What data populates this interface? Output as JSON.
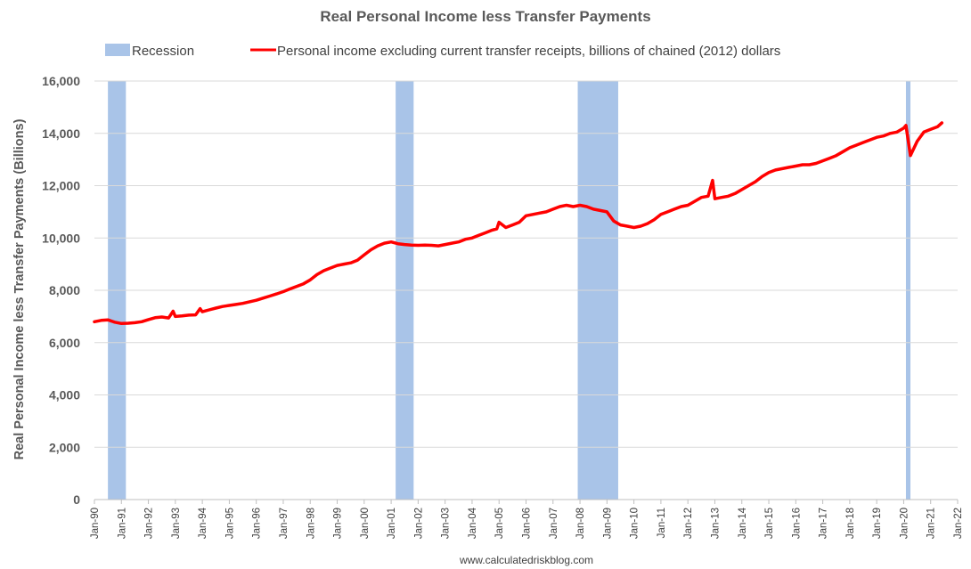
{
  "chart_data": {
    "type": "line",
    "title": "Real Personal Income less Transfer Payments",
    "ylabel": "Real Personal Income less Transfer Payments (Billions)",
    "xlabel": "",
    "footer": "www.calculatedriskblog.com",
    "xlim": [
      "1990-01",
      "2022-01"
    ],
    "ylim": [
      0,
      16000
    ],
    "yticks": [
      0,
      2000,
      4000,
      6000,
      8000,
      10000,
      12000,
      14000,
      16000
    ],
    "ytick_labels": [
      "0",
      "2,000",
      "4,000",
      "6,000",
      "8,000",
      "10,000",
      "12,000",
      "14,000",
      "16,000"
    ],
    "xticks": [
      "1990-01",
      "1991-01",
      "1992-01",
      "1993-01",
      "1994-01",
      "1995-01",
      "1996-01",
      "1997-01",
      "1998-01",
      "1999-01",
      "2000-01",
      "2001-01",
      "2002-01",
      "2003-01",
      "2004-01",
      "2005-01",
      "2006-01",
      "2007-01",
      "2008-01",
      "2009-01",
      "2010-01",
      "2011-01",
      "2012-01",
      "2013-01",
      "2014-01",
      "2015-01",
      "2016-01",
      "2017-01",
      "2018-01",
      "2019-01",
      "2020-01",
      "2021-01",
      "2022-01"
    ],
    "xtick_labels": [
      "Jan-90",
      "Jan-91",
      "Jan-92",
      "Jan-93",
      "Jan-94",
      "Jan-95",
      "Jan-96",
      "Jan-97",
      "Jan-98",
      "Jan-99",
      "Jan-00",
      "Jan-01",
      "Jan-02",
      "Jan-03",
      "Jan-04",
      "Jan-05",
      "Jan-06",
      "Jan-07",
      "Jan-08",
      "Jan-09",
      "Jan-10",
      "Jan-11",
      "Jan-12",
      "Jan-13",
      "Jan-14",
      "Jan-15",
      "Jan-16",
      "Jan-17",
      "Jan-18",
      "Jan-19",
      "Jan-20",
      "Jan-21",
      "Jan-22"
    ],
    "grid": "horizontal",
    "legend_position": "top",
    "recessions": {
      "name": "Recession",
      "color": "#a9c4e8",
      "periods": [
        {
          "start": "1990-07",
          "end": "1991-03"
        },
        {
          "start": "2001-03",
          "end": "2001-11"
        },
        {
          "start": "2007-12",
          "end": "2009-06"
        },
        {
          "start": "2020-02",
          "end": "2020-04"
        }
      ]
    },
    "series": [
      {
        "name": "Personal income excluding current transfer receipts, billions of chained (2012) dollars",
        "color": "#ff0000",
        "x": [
          "1990-01",
          "1990-04",
          "1990-07",
          "1990-10",
          "1991-01",
          "1991-04",
          "1991-07",
          "1991-10",
          "1992-01",
          "1992-04",
          "1992-07",
          "1992-10",
          "1992-12",
          "1993-01",
          "1993-04",
          "1993-07",
          "1993-10",
          "1993-12",
          "1994-01",
          "1994-04",
          "1994-07",
          "1994-10",
          "1995-01",
          "1995-04",
          "1995-07",
          "1995-10",
          "1996-01",
          "1996-04",
          "1996-07",
          "1996-10",
          "1997-01",
          "1997-04",
          "1997-07",
          "1997-10",
          "1998-01",
          "1998-04",
          "1998-07",
          "1998-10",
          "1999-01",
          "1999-04",
          "1999-07",
          "1999-10",
          "2000-01",
          "2000-04",
          "2000-07",
          "2000-10",
          "2001-01",
          "2001-04",
          "2001-07",
          "2001-10",
          "2002-01",
          "2002-04",
          "2002-07",
          "2002-10",
          "2003-01",
          "2003-04",
          "2003-07",
          "2003-10",
          "2004-01",
          "2004-04",
          "2004-07",
          "2004-10",
          "2004-12",
          "2005-01",
          "2005-04",
          "2005-07",
          "2005-10",
          "2006-01",
          "2006-04",
          "2006-07",
          "2006-10",
          "2007-01",
          "2007-04",
          "2007-07",
          "2007-10",
          "2008-01",
          "2008-04",
          "2008-07",
          "2008-10",
          "2009-01",
          "2009-04",
          "2009-07",
          "2009-10",
          "2010-01",
          "2010-04",
          "2010-07",
          "2010-10",
          "2011-01",
          "2011-04",
          "2011-07",
          "2011-10",
          "2012-01",
          "2012-04",
          "2012-07",
          "2012-10",
          "2012-12",
          "2013-01",
          "2013-04",
          "2013-07",
          "2013-10",
          "2014-01",
          "2014-04",
          "2014-07",
          "2014-10",
          "2015-01",
          "2015-04",
          "2015-07",
          "2015-10",
          "2016-01",
          "2016-04",
          "2016-07",
          "2016-10",
          "2017-01",
          "2017-04",
          "2017-07",
          "2017-10",
          "2018-01",
          "2018-04",
          "2018-07",
          "2018-10",
          "2019-01",
          "2019-04",
          "2019-07",
          "2019-10",
          "2020-01",
          "2020-02",
          "2020-04",
          "2020-07",
          "2020-10",
          "2021-01",
          "2021-04",
          "2021-06"
        ],
        "y": [
          6800,
          6850,
          6870,
          6780,
          6730,
          6740,
          6760,
          6800,
          6880,
          6950,
          6980,
          6940,
          7200,
          7000,
          7020,
          7050,
          7060,
          7300,
          7180,
          7250,
          7320,
          7380,
          7420,
          7460,
          7500,
          7560,
          7620,
          7700,
          7780,
          7860,
          7950,
          8050,
          8150,
          8250,
          8400,
          8600,
          8750,
          8850,
          8950,
          9000,
          9050,
          9150,
          9350,
          9550,
          9700,
          9800,
          9850,
          9780,
          9750,
          9730,
          9720,
          9730,
          9720,
          9700,
          9750,
          9800,
          9850,
          9950,
          10000,
          10100,
          10200,
          10300,
          10350,
          10600,
          10400,
          10500,
          10600,
          10850,
          10900,
          10950,
          11000,
          11100,
          11200,
          11250,
          11200,
          11250,
          11200,
          11100,
          11050,
          11000,
          10650,
          10500,
          10450,
          10400,
          10450,
          10550,
          10700,
          10900,
          11000,
          11100,
          11200,
          11250,
          11400,
          11550,
          11600,
          12200,
          11500,
          11550,
          11600,
          11700,
          11850,
          12000,
          12150,
          12350,
          12500,
          12600,
          12650,
          12700,
          12750,
          12800,
          12800,
          12850,
          12950,
          13050,
          13150,
          13300,
          13450,
          13550,
          13650,
          13750,
          13850,
          13900,
          14000,
          14050,
          14200,
          14300,
          13150,
          13700,
          14050,
          14150,
          14250,
          14400
        ]
      }
    ]
  }
}
